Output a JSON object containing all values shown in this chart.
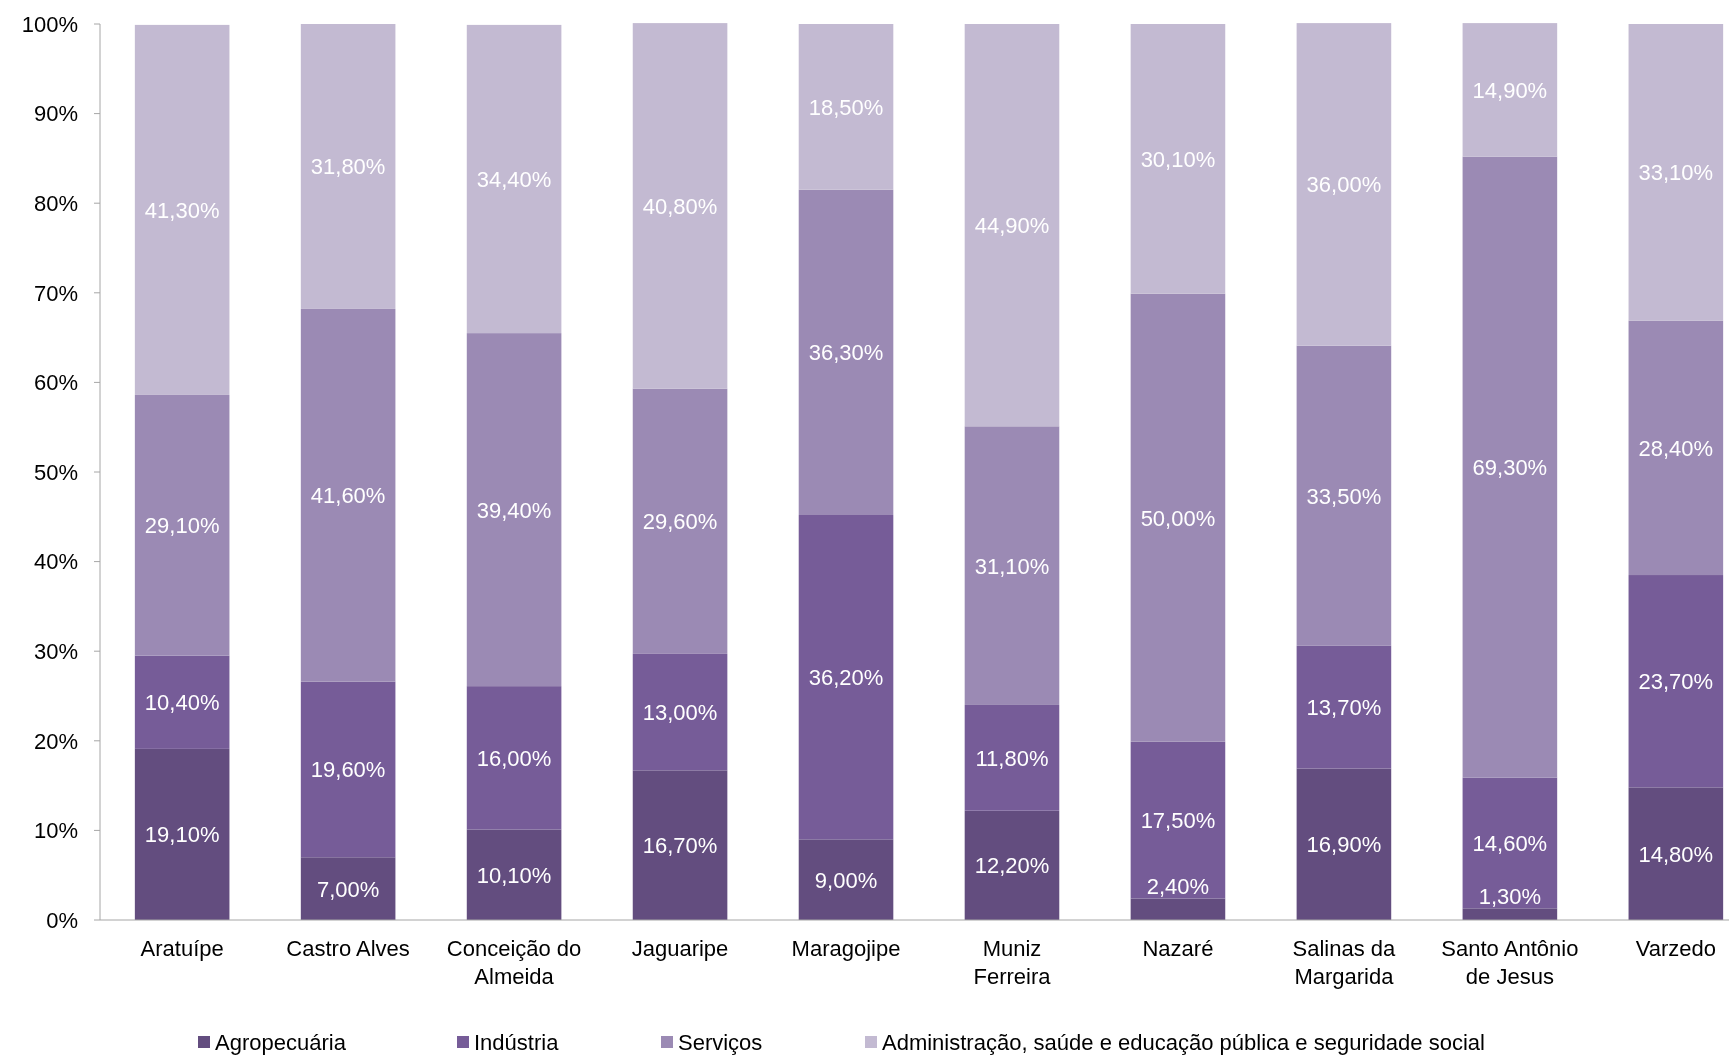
{
  "chart_data": {
    "type": "bar",
    "stacked": true,
    "legend": "bottom",
    "grid": false,
    "data_labels": false,
    "categories": [
      "Aratuípe",
      "Castro Alves",
      "Conceição do Almeida",
      "Jaguaripe",
      "Maragojipe",
      "Muniz Ferreira",
      "Nazaré",
      "Salinas da Margarida",
      "Santo Antônio de Jesus",
      "Varzedo"
    ],
    "ylim": [
      0,
      100
    ],
    "yticks": [
      {
        "value": 0,
        "label": "0%"
      },
      {
        "value": 10,
        "label": "10%"
      },
      {
        "value": 20,
        "label": "20%"
      },
      {
        "value": 30,
        "label": "30%"
      },
      {
        "value": 40,
        "label": "40%"
      },
      {
        "value": 50,
        "label": "50%"
      },
      {
        "value": 60,
        "label": "60%"
      },
      {
        "value": 70,
        "label": "70%"
      },
      {
        "value": 80,
        "label": "80%"
      },
      {
        "value": 90,
        "label": "90%"
      },
      {
        "value": 100,
        "label": "100%"
      }
    ],
    "series": [
      {
        "name": "Agropecuária",
        "color": "#634d7f",
        "values": [
          19.1,
          7.0,
          10.1,
          16.7,
          9.0,
          12.2,
          2.4,
          16.9,
          1.3,
          14.8
        ],
        "value_labels": [
          "19,10%",
          "7,00%",
          "10,10%",
          "16,70%",
          "9,00%",
          "12,20%",
          "2,40%",
          "16,90%",
          "1,30%",
          "14,80%"
        ]
      },
      {
        "name": "Indústria",
        "color": "#765c98",
        "values": [
          10.4,
          19.6,
          16.0,
          13.0,
          36.2,
          11.8,
          17.5,
          13.7,
          14.6,
          23.7
        ],
        "value_labels": [
          "10,40%",
          "19,60%",
          "16,00%",
          "13,00%",
          "36,20%",
          "11,80%",
          "17,50%",
          "13,70%",
          "14,60%",
          "23,70%"
        ]
      },
      {
        "name": "Serviços",
        "color": "#9b8ab4",
        "values": [
          29.1,
          41.6,
          39.4,
          29.6,
          36.3,
          31.1,
          50.0,
          33.5,
          69.3,
          28.4
        ],
        "value_labels": [
          "29,10%",
          "41,60%",
          "39,40%",
          "29,60%",
          "36,30%",
          "31,10%",
          "50,00%",
          "33,50%",
          "69,30%",
          "28,40%"
        ]
      },
      {
        "name": "Administração, saúde e educação pública e seguridade social",
        "color": "#c3bad2",
        "values": [
          41.3,
          31.8,
          34.4,
          40.8,
          18.5,
          44.9,
          30.1,
          36.0,
          14.9,
          33.1
        ],
        "value_labels": [
          "41,30%",
          "31,80%",
          "34,40%",
          "40,80%",
          "18,50%",
          "44,90%",
          "30,10%",
          "36,00%",
          "14,90%",
          "33,10%"
        ]
      }
    ]
  }
}
